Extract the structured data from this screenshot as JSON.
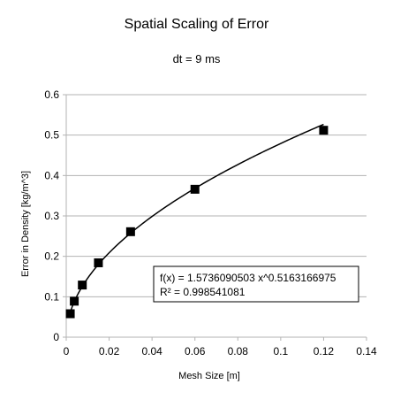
{
  "chart_data": {
    "type": "scatter",
    "title": "Spatial Scaling of Error",
    "subtitle": "dt = 9 ms",
    "xlabel": "Mesh Size [m]",
    "ylabel": "Error in Density [kg/m^3]",
    "xlim": [
      0,
      0.14
    ],
    "ylim": [
      0,
      0.6
    ],
    "xticks": [
      "0",
      "0.02",
      "0.04",
      "0.06",
      "0.08",
      "0.1",
      "0.12",
      "0.14"
    ],
    "yticks": [
      "0",
      "0.1",
      "0.2",
      "0.3",
      "0.4",
      "0.5",
      "0.6"
    ],
    "grid": "horizontal",
    "series": [
      {
        "points": [
          {
            "x": 0.00188,
            "y": 0.058
          },
          {
            "x": 0.00375,
            "y": 0.089
          },
          {
            "x": 0.0075,
            "y": 0.129
          },
          {
            "x": 0.015,
            "y": 0.184
          },
          {
            "x": 0.03,
            "y": 0.261
          },
          {
            "x": 0.06,
            "y": 0.366
          },
          {
            "x": 0.12,
            "y": 0.512
          }
        ],
        "color": "#000000",
        "marker": "square"
      }
    ],
    "trendline": {
      "type": "power",
      "coefficient": 1.5736090503,
      "exponent": 0.5163166975,
      "x_range": [
        0.00188,
        0.12
      ],
      "equation": "f(x) = 1.5736090503 x^0.5163166975",
      "r_squared": "R² = 0.998541081"
    }
  }
}
